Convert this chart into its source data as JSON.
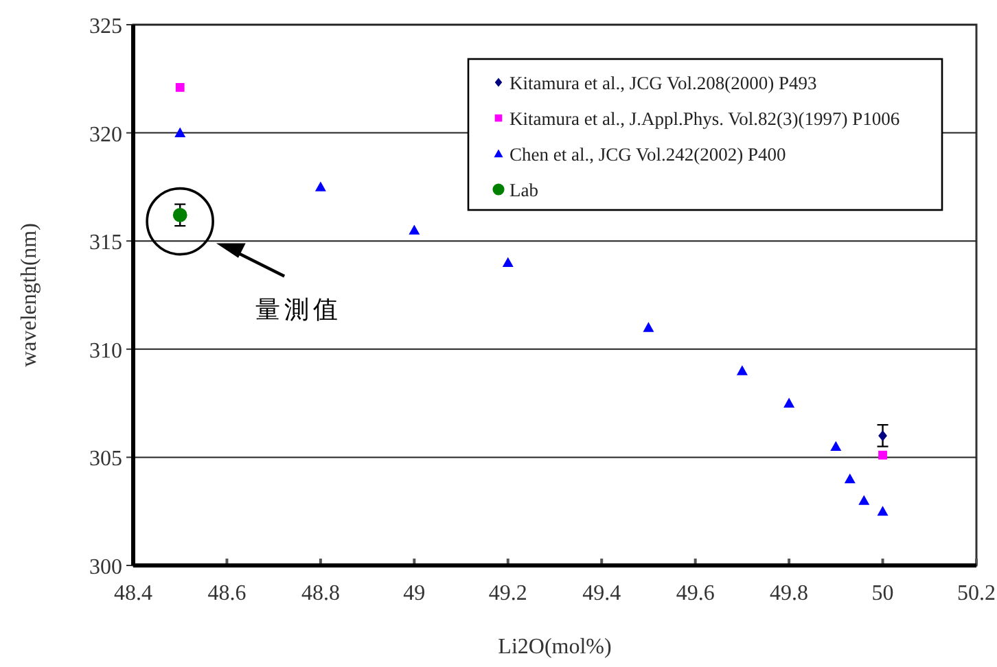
{
  "chart_data": {
    "type": "scatter",
    "xlabel": "Li2O(mol%)",
    "ylabel": "wavelength(nm)",
    "xlim": [
      48.4,
      50.2
    ],
    "xticks": [
      48.4,
      48.6,
      48.8,
      49,
      49.2,
      49.4,
      49.6,
      49.8,
      50,
      50.2
    ],
    "ylim": [
      300,
      325
    ],
    "yticks": [
      300,
      305,
      310,
      315,
      320,
      325
    ],
    "grid": "y",
    "legend": "top right",
    "series": [
      {
        "name": "Kitamura et al., JCG Vol.208(2000) P493",
        "color": "#000080",
        "marker": "diamond",
        "x": [
          50.0
        ],
        "values": [
          306.0
        ],
        "errors": [
          0.5
        ]
      },
      {
        "name": "Kitamura et al., J.Appl.Phys. Vol.82(3)(1997) P1006",
        "color": "#ff00ff",
        "marker": "square",
        "x": [
          48.5,
          50.0
        ],
        "values": [
          322.1,
          305.1
        ]
      },
      {
        "name": "Chen et al., JCG Vol.242(2002) P400",
        "color": "#0000ff",
        "marker": "triangle",
        "x": [
          48.5,
          48.8,
          49.0,
          49.2,
          49.5,
          49.7,
          49.8,
          49.9,
          49.93,
          49.96,
          50.0
        ],
        "values": [
          320.0,
          317.5,
          315.5,
          314.0,
          311.0,
          309.0,
          307.5,
          305.5,
          304.0,
          303.0,
          302.5
        ]
      },
      {
        "name": "Lab",
        "color": "#008000",
        "marker": "circle",
        "x": [
          48.5
        ],
        "values": [
          316.2
        ],
        "errors": [
          0.5
        ]
      }
    ],
    "annotations": [
      "量測值"
    ]
  }
}
